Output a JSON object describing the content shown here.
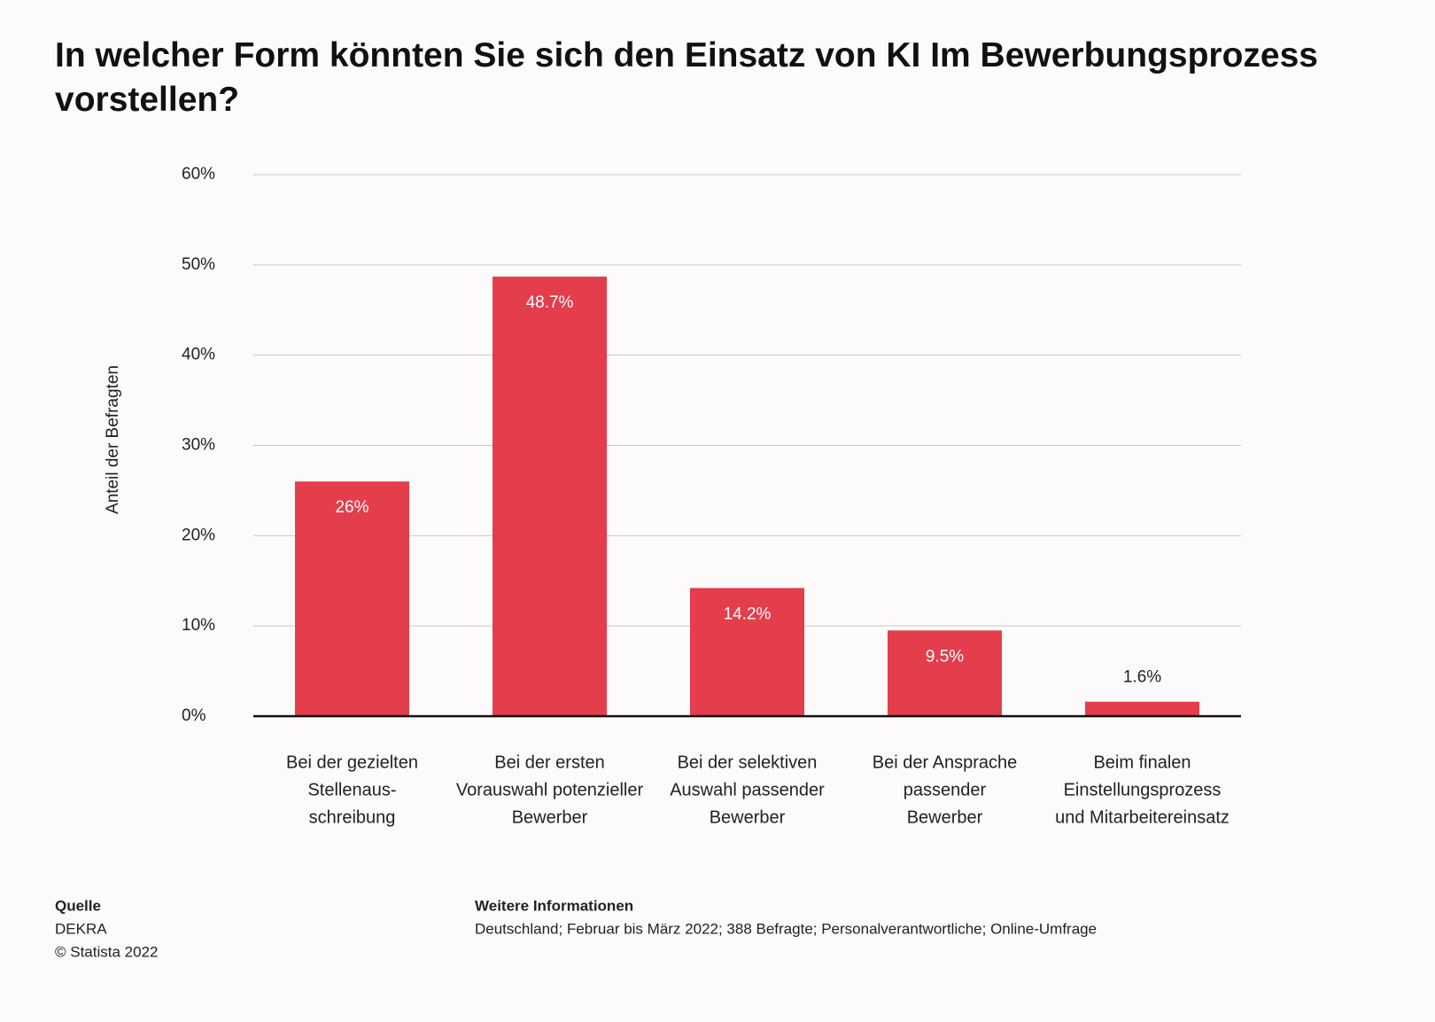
{
  "chart_data": {
    "type": "bar",
    "title": "In welcher Form könnten Sie sich den Einsatz von KI Im Bewerbungsprozess vorstellen?",
    "ylabel": "Anteil der Befragten",
    "categories": [
      [
        "Bei der gezielten",
        "Stellenaus-",
        "schreibung"
      ],
      [
        "Bei der ersten",
        "Vorauswahl potenzieller",
        "Bewerber"
      ],
      [
        "Bei der selektiven",
        "Auswahl passender",
        "Bewerber"
      ],
      [
        "Bei der Ansprache",
        "passender",
        "Bewerber"
      ],
      [
        "Beim finalen",
        "Einstellungsprozess",
        "und Mitarbeitereinsatz"
      ]
    ],
    "values": [
      26,
      48.7,
      14.2,
      9.5,
      1.6
    ],
    "value_labels": [
      "26%",
      "48.7%",
      "14.2%",
      "9.5%",
      "1.6%"
    ],
    "color": "#e43d4b",
    "ylim": [
      0,
      60
    ],
    "yticks": [
      {
        "value": 0,
        "label": "0%"
      },
      {
        "value": 10,
        "label": "10%"
      },
      {
        "value": 20,
        "label": "20%"
      },
      {
        "value": 30,
        "label": "30%"
      },
      {
        "value": 40,
        "label": "40%"
      },
      {
        "value": 50,
        "label": "50%"
      },
      {
        "value": 60,
        "label": "60%"
      }
    ],
    "grid": true,
    "source": {
      "heading": "Quelle",
      "lines": [
        "DEKRA",
        "© Statista 2022"
      ]
    },
    "notes": {
      "heading": "Weitere Informationen",
      "text": "Deutschland; Februar bis März 2022; 388 Befragte; Personalverantwortliche; Online-Umfrage"
    }
  }
}
